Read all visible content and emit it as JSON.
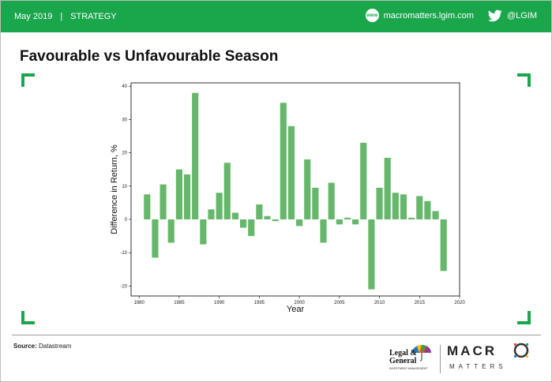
{
  "header": {
    "date": "May 2019",
    "separator": "|",
    "section": "STRATEGY",
    "website": "macromatters.lgim.com",
    "twitter_handle": "@LGIM",
    "globe_label": "www"
  },
  "slide_title": "Favourable vs Unfavourable Season",
  "colors": {
    "brand_green": "#1aa64b",
    "bar_green": "#66b66b"
  },
  "chart_data": {
    "type": "bar",
    "xlabel": "Year",
    "ylabel": "Difference in Return, %",
    "xlim": [
      1979,
      2020
    ],
    "ylim": [
      -23,
      41
    ],
    "x_ticks": [
      "1980",
      "1985",
      "1990",
      "1995",
      "2000",
      "2005",
      "2010",
      "2015",
      "2020"
    ],
    "y_ticks": [
      "40",
      "30",
      "20",
      "10",
      "0",
      "-10",
      "-20"
    ],
    "grid": false,
    "series": [
      {
        "x": [
          1981,
          1982,
          1983,
          1984,
          1985,
          1986,
          1987,
          1988,
          1989,
          1990,
          1991,
          1992,
          1993,
          1994,
          1995,
          1996,
          1997,
          1998,
          1999,
          2000,
          2001,
          2002,
          2003,
          2004,
          2005,
          2006,
          2007,
          2008,
          2009,
          2010,
          2011,
          2012,
          2013,
          2014,
          2015,
          2016,
          2017,
          2018
        ],
        "values": [
          7.5,
          -11.5,
          10.5,
          -7,
          15,
          13.5,
          38,
          -7.5,
          3,
          8,
          17,
          2,
          -2.5,
          -5,
          4.5,
          1,
          -0.5,
          35,
          28,
          -2,
          18,
          9.5,
          -7,
          11,
          -1.5,
          0.5,
          -1.5,
          23,
          -21,
          9.5,
          18.5,
          8,
          7.5,
          0.5,
          7,
          5.5,
          2.5,
          -15.5
        ]
      }
    ]
  },
  "footer": {
    "source_label": "Source:",
    "source_value": "Datastream",
    "lg_line1": "Legal &",
    "lg_line2": "General",
    "lg_sub": "INVESTMENT MANAGEMENT",
    "macro_prefix": "MACR",
    "matters": "MATTERS"
  }
}
